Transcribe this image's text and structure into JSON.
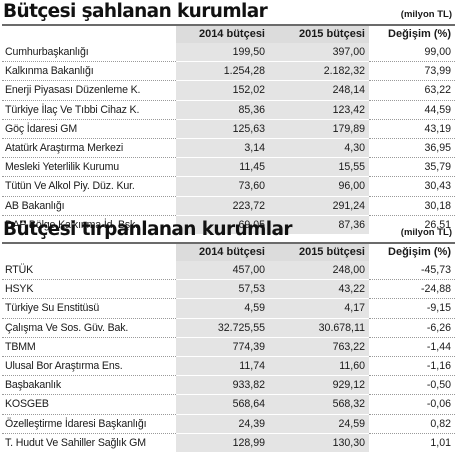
{
  "sections": [
    {
      "title": "Bütçesi şahlanan kurumlar",
      "unit": "(milyon TL)",
      "headers": [
        "",
        "2014 bütçesi",
        "2015 bütçesi",
        "Değişim (%)"
      ],
      "rows": [
        {
          "name": "Cumhurbaşkanlığı",
          "v2014": "199,50",
          "v2015": "397,00",
          "change": "99,00"
        },
        {
          "name": "Kalkınma Bakanlığı",
          "v2014": "1.254,28",
          "v2015": "2.182,32",
          "change": "73,99"
        },
        {
          "name": "Enerji Piyasası Düzenleme K.",
          "v2014": "152,02",
          "v2015": "248,14",
          "change": "63,22"
        },
        {
          "name": "Türkiye İlaç Ve Tıbbi Cihaz K.",
          "v2014": "85,36",
          "v2015": "123,42",
          "change": "44,59"
        },
        {
          "name": "Göç İdaresi GM",
          "v2014": "125,63",
          "v2015": "179,89",
          "change": "43,19"
        },
        {
          "name": "Atatürk Araştırma Merkezi",
          "v2014": "3,14",
          "v2015": "4,30",
          "change": "36,95"
        },
        {
          "name": "Mesleki Yeterlilik Kurumu",
          "v2014": "11,45",
          "v2015": "15,55",
          "change": "35,79"
        },
        {
          "name": "Tütün Ve Alkol Piy. Düz. Kur.",
          "v2014": "73,60",
          "v2015": "96,00",
          "change": "30,43"
        },
        {
          "name": "AB Bakanlığı",
          "v2014": "223,72",
          "v2015": "291,24",
          "change": "30,18"
        },
        {
          "name": "DAP Bölge Kalkınma İd. Bşk.",
          "v2014": "69,05",
          "v2015": "87,36",
          "change": "26,51"
        }
      ]
    },
    {
      "title": "Bütçesi tırpanlanan kurumlar",
      "unit": "(milyon TL)",
      "headers": [
        "",
        "2014 bütçesi",
        "2015 bütçesi",
        "Değişim (%)"
      ],
      "rows": [
        {
          "name": "RTÜK",
          "v2014": "457,00",
          "v2015": "248,00",
          "change": "-45,73"
        },
        {
          "name": "HSYK",
          "v2014": "57,53",
          "v2015": "43,22",
          "change": "-24,88"
        },
        {
          "name": "Türkiye Su Enstitüsü",
          "v2014": "4,59",
          "v2015": "4,17",
          "change": "-9,15"
        },
        {
          "name": "Çalışma Ve Sos. Güv. Bak.",
          "v2014": "32.725,55",
          "v2015": "30.678,11",
          "change": "-6,26"
        },
        {
          "name": "TBMM",
          "v2014": "774,39",
          "v2015": "763,22",
          "change": "-1,44"
        },
        {
          "name": "Ulusal Bor Araştırma Ens.",
          "v2014": "11,74",
          "v2015": "11,60",
          "change": "-1,16"
        },
        {
          "name": "Başbakanlık",
          "v2014": "933,82",
          "v2015": "929,12",
          "change": "-0,50"
        },
        {
          "name": "KOSGEB",
          "v2014": "568,64",
          "v2015": "568,32",
          "change": "-0,06"
        },
        {
          "name": "Özelleştirme İdaresi Başkanlığı",
          "v2014": "24,39",
          "v2015": "24,59",
          "change": "0,82"
        },
        {
          "name": "T. Hudut Ve Sahiller Sağlık GM",
          "v2014": "128,99",
          "v2015": "130,30",
          "change": "1,01"
        }
      ]
    }
  ]
}
